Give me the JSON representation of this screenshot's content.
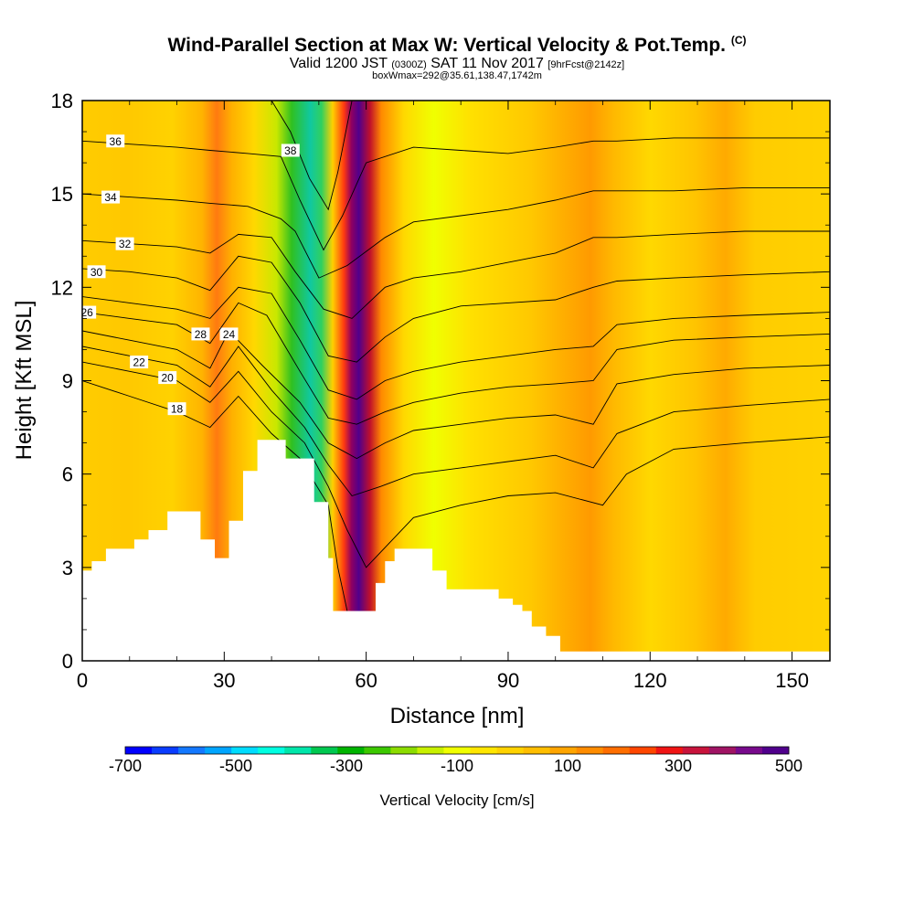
{
  "header": {
    "title": "Wind-Parallel Section at Max W: Vertical Velocity & Pot.Temp.",
    "copyright": "(C)",
    "subtitle_a": "Valid 1200 JST",
    "subtitle_b": "(0300Z)",
    "subtitle_c": "SAT 11 Nov 2017",
    "subtitle_d": "[9hrFcst@2142z]",
    "subtitle2": "boxWmax=292@35.61,138.47,1742m"
  },
  "chart_data": {
    "type": "heatmap",
    "xlabel": "Distance [nm]",
    "ylabel": "Height [Kft MSL]",
    "xlim": [
      0,
      158
    ],
    "ylim": [
      0,
      18
    ],
    "xticks": [
      0,
      30,
      60,
      90,
      120,
      150
    ],
    "yticks": [
      0,
      3,
      6,
      9,
      12,
      15,
      18
    ],
    "colorbar": {
      "label": "Vertical Velocity [cm/s]",
      "ticks": [
        -700,
        -500,
        -300,
        -100,
        100,
        300,
        500
      ],
      "colors": [
        "#0000ff",
        "#0a3cff",
        "#1478ff",
        "#00a5ff",
        "#00dcff",
        "#00ffe1",
        "#00e6aa",
        "#00c850",
        "#00b400",
        "#3cc800",
        "#8cdc00",
        "#c8f000",
        "#f0ff00",
        "#ffe600",
        "#ffd200",
        "#ffbe00",
        "#ffa500",
        "#ff8c00",
        "#ff6e00",
        "#ff4600",
        "#f01414",
        "#c8143c",
        "#a01464",
        "#780a8c",
        "#50008c"
      ]
    },
    "terrain_top_kft": [
      [
        0,
        2.9
      ],
      [
        2,
        3.2
      ],
      [
        5,
        3.6
      ],
      [
        11,
        3.9
      ],
      [
        14,
        4.2
      ],
      [
        18,
        4.8
      ],
      [
        25,
        3.9
      ],
      [
        28,
        3.3
      ],
      [
        31,
        4.5
      ],
      [
        34,
        6.1
      ],
      [
        37,
        7.1
      ],
      [
        43,
        6.5
      ],
      [
        46,
        6.5
      ],
      [
        49,
        5.1
      ],
      [
        52,
        3.3
      ],
      [
        53,
        1.6
      ],
      [
        58,
        1.6
      ],
      [
        62,
        2.5
      ],
      [
        64,
        3.2
      ],
      [
        66,
        3.6
      ],
      [
        71,
        3.6
      ],
      [
        74,
        2.9
      ],
      [
        77,
        2.3
      ],
      [
        85,
        2.3
      ],
      [
        88,
        2
      ],
      [
        91,
        1.8
      ],
      [
        93,
        1.6
      ],
      [
        95,
        1.1
      ],
      [
        98,
        0.8
      ],
      [
        101,
        0.3
      ],
      [
        158,
        0.3
      ]
    ],
    "theta_contours": [
      {
        "value": "18",
        "label_pos": [
          20,
          8.1
        ],
        "pts": [
          [
            0,
            9
          ],
          [
            10,
            8.5
          ],
          [
            20,
            8
          ],
          [
            27,
            7.5
          ],
          [
            33,
            8.5
          ],
          [
            40,
            7.3
          ],
          [
            46,
            6.5
          ],
          [
            52,
            5
          ],
          [
            54,
            3
          ],
          [
            56,
            1.6
          ]
        ]
      },
      {
        "value": "20",
        "label_pos": [
          18,
          9.1
        ],
        "pts": [
          [
            0,
            9.6
          ],
          [
            10,
            9.3
          ],
          [
            20,
            9
          ],
          [
            27,
            8.3
          ],
          [
            33,
            9.3
          ],
          [
            40,
            8
          ],
          [
            47,
            7
          ],
          [
            52,
            5.6
          ],
          [
            56,
            4.2
          ],
          [
            60,
            3
          ],
          [
            70,
            4.6
          ],
          [
            80,
            5
          ],
          [
            90,
            5.3
          ],
          [
            100,
            5.4
          ],
          [
            110,
            5
          ],
          [
            115,
            6
          ],
          [
            125,
            6.8
          ],
          [
            140,
            7
          ],
          [
            158,
            7.2
          ]
        ]
      },
      {
        "value": "22",
        "label_pos": [
          12,
          9.6
        ],
        "pts": [
          [
            0,
            10.1
          ],
          [
            10,
            9.8
          ],
          [
            20,
            9.5
          ],
          [
            27,
            8.8
          ],
          [
            33,
            10.1
          ],
          [
            40,
            8.7
          ],
          [
            47,
            7.5
          ],
          [
            52,
            6.3
          ],
          [
            57,
            5.3
          ],
          [
            63,
            5.6
          ],
          [
            70,
            6
          ],
          [
            80,
            6.2
          ],
          [
            90,
            6.4
          ],
          [
            100,
            6.6
          ],
          [
            108,
            6.2
          ],
          [
            113,
            7.3
          ],
          [
            125,
            8
          ],
          [
            140,
            8.2
          ],
          [
            158,
            8.4
          ]
        ]
      },
      {
        "value": "24",
        "label_pos": [
          31,
          10.5
        ],
        "pts": [
          [
            0,
            10.6
          ],
          [
            10,
            10.3
          ],
          [
            20,
            10
          ],
          [
            27,
            9.4
          ],
          [
            31,
            10.6
          ],
          [
            38,
            9.5
          ],
          [
            46,
            8.3
          ],
          [
            52,
            7
          ],
          [
            58,
            6.5
          ],
          [
            64,
            7
          ],
          [
            70,
            7.4
          ],
          [
            80,
            7.6
          ],
          [
            90,
            7.8
          ],
          [
            100,
            7.9
          ],
          [
            108,
            7.6
          ],
          [
            113,
            8.9
          ],
          [
            125,
            9.2
          ],
          [
            140,
            9.4
          ],
          [
            158,
            9.5
          ]
        ]
      },
      {
        "value": "26",
        "label_pos": [
          1,
          11.2
        ],
        "pts": [
          [
            0,
            11.2
          ],
          [
            10,
            11
          ],
          [
            20,
            10.8
          ],
          [
            27,
            10.2
          ],
          [
            33,
            11.5
          ],
          [
            39,
            11.1
          ],
          [
            46,
            9.3
          ],
          [
            52,
            7.8
          ],
          [
            58,
            7.6
          ],
          [
            64,
            8
          ],
          [
            70,
            8.3
          ],
          [
            80,
            8.6
          ],
          [
            90,
            8.8
          ],
          [
            100,
            8.9
          ],
          [
            108,
            9
          ],
          [
            113,
            10
          ],
          [
            125,
            10.3
          ],
          [
            140,
            10.4
          ],
          [
            158,
            10.5
          ]
        ]
      },
      {
        "value": "28",
        "label_pos": [
          25,
          10.5
        ],
        "pts": [
          [
            0,
            11.7
          ],
          [
            10,
            11.5
          ],
          [
            20,
            11.3
          ],
          [
            27,
            11
          ],
          [
            33,
            12
          ],
          [
            40,
            11.8
          ],
          [
            46,
            10.3
          ],
          [
            52,
            8.7
          ],
          [
            58,
            8.4
          ],
          [
            64,
            9
          ],
          [
            70,
            9.3
          ],
          [
            80,
            9.6
          ],
          [
            90,
            9.8
          ],
          [
            100,
            10
          ],
          [
            108,
            10.1
          ],
          [
            113,
            10.8
          ],
          [
            125,
            11
          ],
          [
            140,
            11.1
          ],
          [
            158,
            11.2
          ]
        ]
      },
      {
        "value": "30",
        "label_pos": [
          3,
          12.5
        ],
        "pts": [
          [
            0,
            12.6
          ],
          [
            10,
            12.5
          ],
          [
            20,
            12.3
          ],
          [
            27,
            11.9
          ],
          [
            33,
            13
          ],
          [
            40,
            12.8
          ],
          [
            46,
            11.5
          ],
          [
            52,
            9.8
          ],
          [
            58,
            9.6
          ],
          [
            64,
            10.4
          ],
          [
            70,
            11
          ],
          [
            80,
            11.4
          ],
          [
            90,
            11.5
          ],
          [
            100,
            11.6
          ],
          [
            108,
            12
          ],
          [
            113,
            12.2
          ],
          [
            125,
            12.3
          ],
          [
            140,
            12.4
          ],
          [
            158,
            12.5
          ]
        ]
      },
      {
        "value": "32",
        "label_pos": [
          9,
          13.4
        ],
        "pts": [
          [
            0,
            13.5
          ],
          [
            10,
            13.4
          ],
          [
            20,
            13.3
          ],
          [
            27,
            13.1
          ],
          [
            33,
            13.7
          ],
          [
            40,
            13.6
          ],
          [
            45,
            12.5
          ],
          [
            51,
            11.3
          ],
          [
            57,
            11
          ],
          [
            64,
            12
          ],
          [
            70,
            12.3
          ],
          [
            80,
            12.5
          ],
          [
            90,
            12.8
          ],
          [
            100,
            13.1
          ],
          [
            108,
            13.6
          ],
          [
            113,
            13.6
          ],
          [
            125,
            13.7
          ],
          [
            140,
            13.8
          ],
          [
            158,
            13.8
          ]
        ]
      },
      {
        "value": "34",
        "label_pos": [
          6,
          14.9
        ],
        "pts": [
          [
            0,
            15
          ],
          [
            10,
            14.9
          ],
          [
            20,
            14.8
          ],
          [
            27,
            14.7
          ],
          [
            35,
            14.6
          ],
          [
            42,
            14.2
          ],
          [
            45,
            13.8
          ],
          [
            50,
            12.3
          ],
          [
            56,
            12.7
          ],
          [
            64,
            13.6
          ],
          [
            70,
            14.1
          ],
          [
            80,
            14.3
          ],
          [
            90,
            14.5
          ],
          [
            100,
            14.8
          ],
          [
            108,
            15.1
          ],
          [
            113,
            15.1
          ],
          [
            125,
            15.1
          ],
          [
            140,
            15.2
          ],
          [
            158,
            15.2
          ]
        ]
      },
      {
        "value": "36",
        "label_pos": [
          7,
          16.7
        ],
        "pts": [
          [
            0,
            16.7
          ],
          [
            10,
            16.6
          ],
          [
            20,
            16.5
          ],
          [
            27,
            16.4
          ],
          [
            35,
            16.3
          ],
          [
            42,
            16.2
          ],
          [
            46,
            14.8
          ],
          [
            51,
            13.2
          ],
          [
            55,
            14.3
          ],
          [
            60,
            16
          ],
          [
            70,
            16.5
          ],
          [
            80,
            16.4
          ],
          [
            90,
            16.3
          ],
          [
            100,
            16.5
          ],
          [
            108,
            16.7
          ],
          [
            113,
            16.7
          ],
          [
            125,
            16.8
          ],
          [
            140,
            16.8
          ],
          [
            158,
            16.8
          ]
        ]
      },
      {
        "value": "38",
        "label_pos": [
          44,
          16.4
        ],
        "pts": [
          [
            40,
            18
          ],
          [
            44,
            17
          ],
          [
            48,
            15.5
          ],
          [
            52,
            14.5
          ],
          [
            54,
            15.7
          ],
          [
            57,
            18
          ]
        ]
      }
    ]
  }
}
